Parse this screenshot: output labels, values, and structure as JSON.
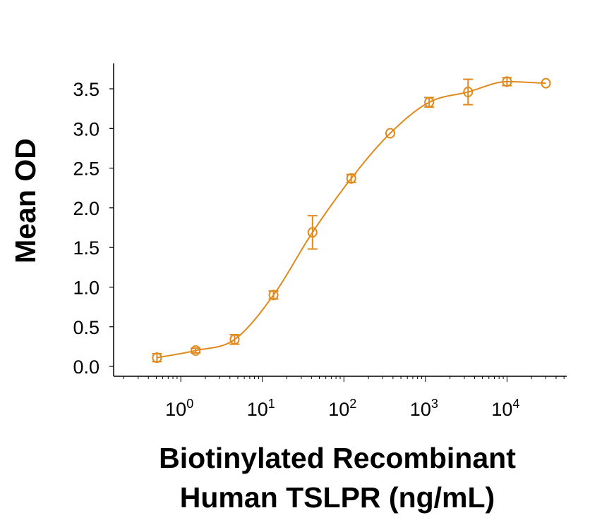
{
  "chart_data": {
    "type": "scatter",
    "xlabel": [
      "Biotinylated Recombinant",
      "Human TSLPR (ng/mL)"
    ],
    "ylabel": "Mean OD",
    "xscale": "log",
    "xlim": [
      0.15,
      54000
    ],
    "ylim": [
      -0.124,
      3.82
    ],
    "yticks": [
      "0.0",
      "0.5",
      "1.0",
      "1.5",
      "2.0",
      "2.5",
      "3.0",
      "3.5"
    ],
    "xticks": [
      {
        "base": "10",
        "exp": "0",
        "value": 1
      },
      {
        "base": "10",
        "exp": "1",
        "value": 10
      },
      {
        "base": "10",
        "exp": "2",
        "value": 100
      },
      {
        "base": "10",
        "exp": "3",
        "value": 1000
      },
      {
        "base": "10",
        "exp": "4",
        "value": 10000
      }
    ],
    "grid": false,
    "color": "#E08A1E",
    "marker": "open-circle",
    "fit_curve": "sigmoidal",
    "series": [
      {
        "x": [
          0.51,
          1.52,
          4.57,
          13.7,
          41.2,
          123,
          370,
          1111,
          3333,
          10000,
          30000
        ],
        "y": [
          0.11,
          0.2,
          0.34,
          0.9,
          1.69,
          2.37,
          2.94,
          3.33,
          3.46,
          3.59,
          3.57
        ],
        "err": [
          0.05,
          0.03,
          0.06,
          0.05,
          0.21,
          0.05,
          0.0,
          0.06,
          0.16,
          0.05,
          0.0
        ]
      }
    ]
  }
}
